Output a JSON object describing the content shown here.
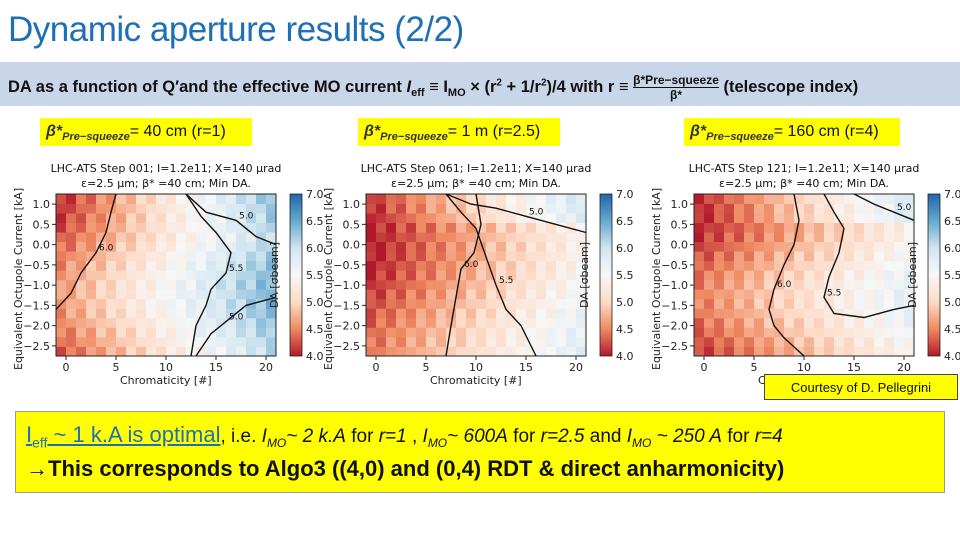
{
  "header": {
    "title": "Dynamic aperture results (2/2)",
    "banner": {
      "p1": "DA  as a function of Q′and the effective MO current ",
      "ieff": "I",
      "ieff_sub": "eff",
      "p2": " ≡ I",
      "imo_sub": "MO",
      "p3": " × (r",
      "p4": " + 1/r",
      "p5": ")/4 with  r ≡ ",
      "frac_num": "β*Pre−squeeze",
      "frac_den": "β*",
      "p6": " (telescope index)"
    }
  },
  "beta_boxes": [
    {
      "symbol": "β*",
      "sub": "Pre−squeeze",
      "value": "= 40 cm (r=1)"
    },
    {
      "symbol": "β*",
      "sub": "Pre−squeeze",
      "value": "= 1 m (r=2.5)"
    },
    {
      "symbol": "β*",
      "sub": "Pre−squeeze",
      "value": "= 160 cm (r=4)"
    }
  ],
  "chart_data": [
    {
      "type": "heatmap",
      "title": "LHC-ATS Step 001; I=1.2e11; X=140 μrad",
      "subtitle": "ε=2.5 μm; β* =40 cm; Min DA.",
      "xlabel": "Chromaticity [#]",
      "ylabel": "Equivalent Octupole Current [kA]",
      "colorbar_label": "DA [σbeam]",
      "xlim": [
        -1,
        21
      ],
      "ylim": [
        -2.75,
        1.25
      ],
      "x_ticks": [
        "0",
        "5",
        "10",
        "15",
        "20"
      ],
      "y_ticks": [
        "1.0",
        "0.5",
        "0.0",
        "−0.5",
        "−1.0",
        "−1.5",
        "−2.0",
        "−2.5"
      ],
      "colorbar_ticks": [
        "7.0",
        "6.5",
        "6.0",
        "5.5",
        "5.0",
        "4.5",
        "4.0"
      ],
      "clim": [
        4.0,
        7.0
      ],
      "colormap": [
        "#b2182b",
        "#ef8a62",
        "#fddbc7",
        "#f7f7f7",
        "#d1e5f0",
        "#67a9cf",
        "#2166ac"
      ],
      "contours": [
        {
          "level": "6.0",
          "points": [
            [
              5,
              1.25
            ],
            [
              4.5,
              0.8
            ],
            [
              4,
              0.3
            ],
            [
              3,
              -0.2
            ],
            [
              1.5,
              -0.7
            ],
            [
              0.5,
              -1.2
            ],
            [
              -1,
              -1.6
            ]
          ]
        },
        {
          "level": "5.0",
          "points": [
            [
              12,
              1.25
            ],
            [
              14,
              0.8
            ],
            [
              17,
              0.6
            ],
            [
              19,
              0.2
            ],
            [
              21,
              0.0
            ]
          ]
        },
        {
          "level": "5.5",
          "points": [
            [
              12,
              1.25
            ],
            [
              13.5,
              0.7
            ],
            [
              15,
              0.3
            ],
            [
              16.5,
              -0.2
            ],
            [
              16,
              -0.7
            ],
            [
              14.5,
              -1.1
            ],
            [
              14,
              -1.5
            ],
            [
              13,
              -2.0
            ],
            [
              12.5,
              -2.75
            ]
          ]
        },
        {
          "level": "5.0",
          "points": [
            [
              21,
              -1.3
            ],
            [
              18,
              -1.5
            ],
            [
              16,
              -1.9
            ],
            [
              14.5,
              -2.2
            ],
            [
              13,
              -2.75
            ]
          ]
        }
      ]
    },
    {
      "type": "heatmap",
      "title": "LHC-ATS Step 061; I=1.2e11; X=140 μrad",
      "subtitle": "ε=2.5 μm; β* =40 cm; Min DA.",
      "xlabel": "Chromaticity [#]",
      "ylabel": "Equivalent Octupole Current [kA]",
      "colorbar_label": "DA [σbeam]",
      "xlim": [
        -1,
        21
      ],
      "ylim": [
        -2.75,
        1.25
      ],
      "x_ticks": [
        "0",
        "5",
        "10",
        "15",
        "20"
      ],
      "y_ticks": [
        "1.0",
        "0.5",
        "0.0",
        "−0.5",
        "−1.0",
        "−1.5",
        "−2.0",
        "−2.5"
      ],
      "colorbar_ticks": [
        "7.0",
        "6.5",
        "6.0",
        "5.5",
        "5.0",
        "4.5",
        "4.0"
      ],
      "clim": [
        4.0,
        7.0
      ],
      "colormap": [
        "#b2182b",
        "#ef8a62",
        "#fddbc7",
        "#f7f7f7",
        "#d1e5f0",
        "#67a9cf",
        "#2166ac"
      ],
      "contours": [
        {
          "level": "5.0",
          "points": [
            [
              7,
              1.25
            ],
            [
              9.5,
              1.0
            ],
            [
              12,
              0.9
            ],
            [
              15,
              0.7
            ],
            [
              18,
              0.5
            ],
            [
              21,
              0.3
            ]
          ]
        },
        {
          "level": "5.5",
          "points": [
            [
              7,
              1.25
            ],
            [
              8.5,
              0.8
            ],
            [
              10,
              0.4
            ],
            [
              11,
              -0.3
            ],
            [
              12,
              -1.0
            ],
            [
              13,
              -1.6
            ],
            [
              14.5,
              -2.0
            ],
            [
              16,
              -2.75
            ]
          ]
        },
        {
          "level": "6.0",
          "points": [
            [
              10,
              1.25
            ],
            [
              10.5,
              0.5
            ],
            [
              9.8,
              -0.2
            ],
            [
              8.5,
              -0.6
            ],
            [
              8,
              -1.3
            ],
            [
              7.5,
              -2.0
            ],
            [
              7,
              -2.75
            ]
          ]
        }
      ]
    },
    {
      "type": "heatmap",
      "title": "LHC-ATS Step 121; I=1.2e11; X=140 μrad",
      "subtitle": "ε=2.5 μm; β* =40 cm; Min DA.",
      "xlabel": "Chromaticity [#]",
      "ylabel": "Equivalent Octupole Current [kA]",
      "colorbar_label": "DA [σbeam]",
      "xlim": [
        -1,
        21
      ],
      "ylim": [
        -2.75,
        1.25
      ],
      "x_ticks": [
        "0",
        "5",
        "10",
        "15",
        "20"
      ],
      "y_ticks": [
        "1.0",
        "0.5",
        "0.0",
        "−0.5",
        "−1.0",
        "−1.5",
        "−2.0",
        "−2.5"
      ],
      "colorbar_ticks": [
        "7.0",
        "6.5",
        "6.0",
        "5.5",
        "5.0",
        "4.5",
        "4.0"
      ],
      "clim": [
        4.0,
        7.0
      ],
      "colormap": [
        "#b2182b",
        "#ef8a62",
        "#fddbc7",
        "#f7f7f7",
        "#d1e5f0",
        "#67a9cf",
        "#2166ac"
      ],
      "contours": [
        {
          "level": "5.0",
          "points": [
            [
              15,
              1.25
            ],
            [
              17,
              1.0
            ],
            [
              19,
              0.8
            ],
            [
              21,
              0.6
            ]
          ]
        },
        {
          "level": "5.5",
          "points": [
            [
              12,
              1.25
            ],
            [
              13,
              0.8
            ],
            [
              14,
              0.4
            ],
            [
              13.5,
              -0.2
            ],
            [
              12.5,
              -0.8
            ],
            [
              12,
              -1.3
            ],
            [
              13,
              -1.7
            ],
            [
              16,
              -1.8
            ],
            [
              19,
              -1.6
            ],
            [
              21,
              -1.5
            ]
          ]
        },
        {
          "level": "6.0",
          "points": [
            [
              9,
              1.25
            ],
            [
              9.5,
              0.6
            ],
            [
              9,
              0.0
            ],
            [
              8,
              -0.5
            ],
            [
              7,
              -1.1
            ],
            [
              6.5,
              -1.6
            ],
            [
              7,
              -2.0
            ],
            [
              8,
              -2.3
            ],
            [
              10,
              -2.75
            ]
          ]
        }
      ]
    }
  ],
  "courtesy": "Courtesy of D. Pellegrini",
  "summary": {
    "i_letter": "I",
    "eff_sub": "eff",
    "optimal": " ~ 1 k.A is optimal",
    "ie": ", i.e. ",
    "v1": "~ 2 k.A",
    "for1": " for ",
    "r1": "r=1",
    "sep1": " , ",
    "v2": "~ 600A",
    "r2": "r=2.5",
    "and": "  and ",
    "v3": " ~ 250 A",
    "r3": "r=4",
    "mo": "MO",
    "line2": "→This corresponds to Algo3 ((4,0) and (0,4) RDT & direct anharmonicity)"
  }
}
